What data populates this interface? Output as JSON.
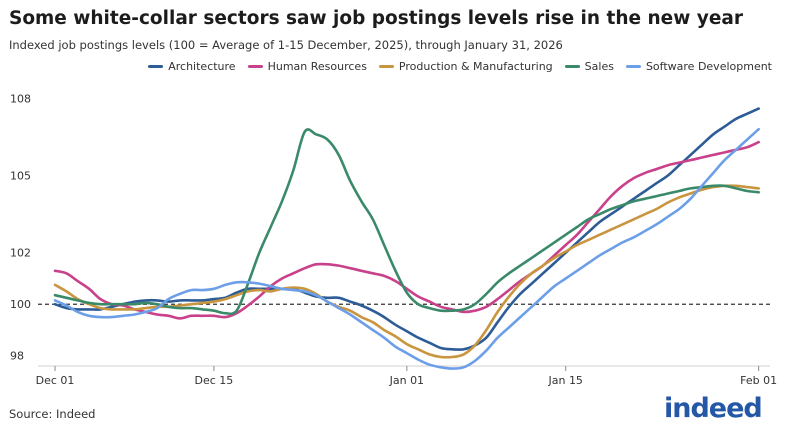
{
  "chart_data": {
    "type": "line",
    "title": "Some white-collar sectors saw job postings levels rise in the new year",
    "subtitle": "Indexed job postings levels (100 = Average of 1-15 December, 2025), through January 31, 2026",
    "xlabel": "",
    "ylabel": "",
    "x_ticks": [
      {
        "label": "Dec 01",
        "day": 0
      },
      {
        "label": "Dec 15",
        "day": 14
      },
      {
        "label": "Jan 01",
        "day": 31
      },
      {
        "label": "Jan 15",
        "day": 45
      },
      {
        "label": "Feb 01",
        "day": 62
      }
    ],
    "y_ticks": [
      98,
      100,
      102,
      105,
      108
    ],
    "xlim": [
      -1.5,
      63
    ],
    "ylim": [
      97.6,
      108.4
    ],
    "reference_line": 100,
    "series": [
      {
        "name": "Architecture",
        "color": "#2d5c96",
        "values": [
          100.0,
          99.85,
          99.8,
          99.8,
          99.8,
          99.9,
          100.0,
          100.1,
          100.15,
          100.15,
          100.1,
          100.15,
          100.15,
          100.15,
          100.2,
          100.25,
          100.45,
          100.6,
          100.6,
          100.6,
          100.6,
          100.6,
          100.45,
          100.3,
          100.25,
          100.25,
          100.1,
          99.95,
          99.75,
          99.5,
          99.2,
          98.95,
          98.7,
          98.5,
          98.3,
          98.25,
          98.25,
          98.4,
          98.7,
          99.3,
          99.9,
          100.4,
          100.8,
          101.2,
          101.6,
          102.0,
          102.4,
          102.8,
          103.2,
          103.5,
          103.8,
          104.1,
          104.4,
          104.7,
          105.0,
          105.4,
          105.8,
          106.2,
          106.6,
          106.9,
          107.2,
          107.4,
          107.6
        ]
      },
      {
        "name": "Human Resources",
        "color": "#c9418a",
        "values": [
          101.3,
          101.2,
          100.9,
          100.6,
          100.2,
          100.0,
          99.95,
          99.8,
          99.7,
          99.6,
          99.55,
          99.45,
          99.55,
          99.55,
          99.55,
          99.5,
          99.65,
          99.95,
          100.3,
          100.7,
          101.0,
          101.2,
          101.4,
          101.55,
          101.55,
          101.5,
          101.4,
          101.3,
          101.2,
          101.1,
          100.9,
          100.6,
          100.3,
          100.1,
          99.9,
          99.8,
          99.7,
          99.75,
          99.9,
          100.2,
          100.55,
          100.9,
          101.2,
          101.5,
          101.9,
          102.3,
          102.7,
          103.2,
          103.7,
          104.2,
          104.6,
          104.9,
          105.1,
          105.25,
          105.4,
          105.5,
          105.6,
          105.7,
          105.8,
          105.9,
          106.0,
          106.1,
          106.3
        ]
      },
      {
        "name": "Production & Manufacturing",
        "color": "#c9953f",
        "values": [
          100.75,
          100.5,
          100.2,
          100.0,
          99.85,
          99.8,
          99.8,
          99.8,
          99.85,
          99.9,
          99.9,
          99.95,
          100.0,
          100.05,
          100.1,
          100.2,
          100.35,
          100.5,
          100.55,
          100.5,
          100.6,
          100.65,
          100.6,
          100.4,
          100.1,
          99.9,
          99.75,
          99.5,
          99.3,
          99.0,
          98.75,
          98.45,
          98.25,
          98.05,
          97.95,
          97.95,
          98.05,
          98.4,
          99.0,
          99.7,
          100.3,
          100.8,
          101.2,
          101.5,
          101.8,
          102.05,
          102.3,
          102.5,
          102.7,
          102.9,
          103.1,
          103.3,
          103.5,
          103.7,
          103.95,
          104.15,
          104.3,
          104.45,
          104.55,
          104.6,
          104.6,
          104.55,
          104.5
        ]
      },
      {
        "name": "Sales",
        "color": "#3a8a6a",
        "values": [
          100.35,
          100.25,
          100.15,
          100.05,
          100.0,
          100.0,
          100.0,
          100.0,
          100.05,
          100.0,
          99.9,
          99.85,
          99.85,
          99.8,
          99.75,
          99.65,
          99.75,
          100.8,
          102.0,
          103.0,
          104.0,
          105.2,
          106.7,
          106.6,
          106.4,
          105.8,
          104.8,
          104.0,
          103.3,
          102.3,
          101.3,
          100.45,
          100.0,
          99.85,
          99.75,
          99.75,
          99.8,
          100.0,
          100.4,
          100.85,
          101.2,
          101.5,
          101.8,
          102.1,
          102.4,
          102.7,
          103.0,
          103.3,
          103.5,
          103.7,
          103.85,
          104.0,
          104.1,
          104.2,
          104.3,
          104.4,
          104.5,
          104.55,
          104.6,
          104.6,
          104.5,
          104.4,
          104.35
        ]
      },
      {
        "name": "Software Development",
        "color": "#6d9ee8",
        "values": [
          100.15,
          99.95,
          99.7,
          99.55,
          99.5,
          99.5,
          99.55,
          99.6,
          99.7,
          99.85,
          100.2,
          100.4,
          100.55,
          100.55,
          100.6,
          100.75,
          100.85,
          100.85,
          100.8,
          100.7,
          100.6,
          100.55,
          100.5,
          100.35,
          100.1,
          99.85,
          99.6,
          99.3,
          99.0,
          98.7,
          98.35,
          98.1,
          97.85,
          97.65,
          97.55,
          97.5,
          97.55,
          97.8,
          98.2,
          98.7,
          99.1,
          99.5,
          99.9,
          100.3,
          100.7,
          101.0,
          101.3,
          101.6,
          101.9,
          102.15,
          102.4,
          102.6,
          102.85,
          103.1,
          103.4,
          103.7,
          104.1,
          104.6,
          105.1,
          105.6,
          106.0,
          106.4,
          106.8
        ]
      }
    ]
  },
  "source": "Source: Indeed",
  "logo_text": "indeed"
}
